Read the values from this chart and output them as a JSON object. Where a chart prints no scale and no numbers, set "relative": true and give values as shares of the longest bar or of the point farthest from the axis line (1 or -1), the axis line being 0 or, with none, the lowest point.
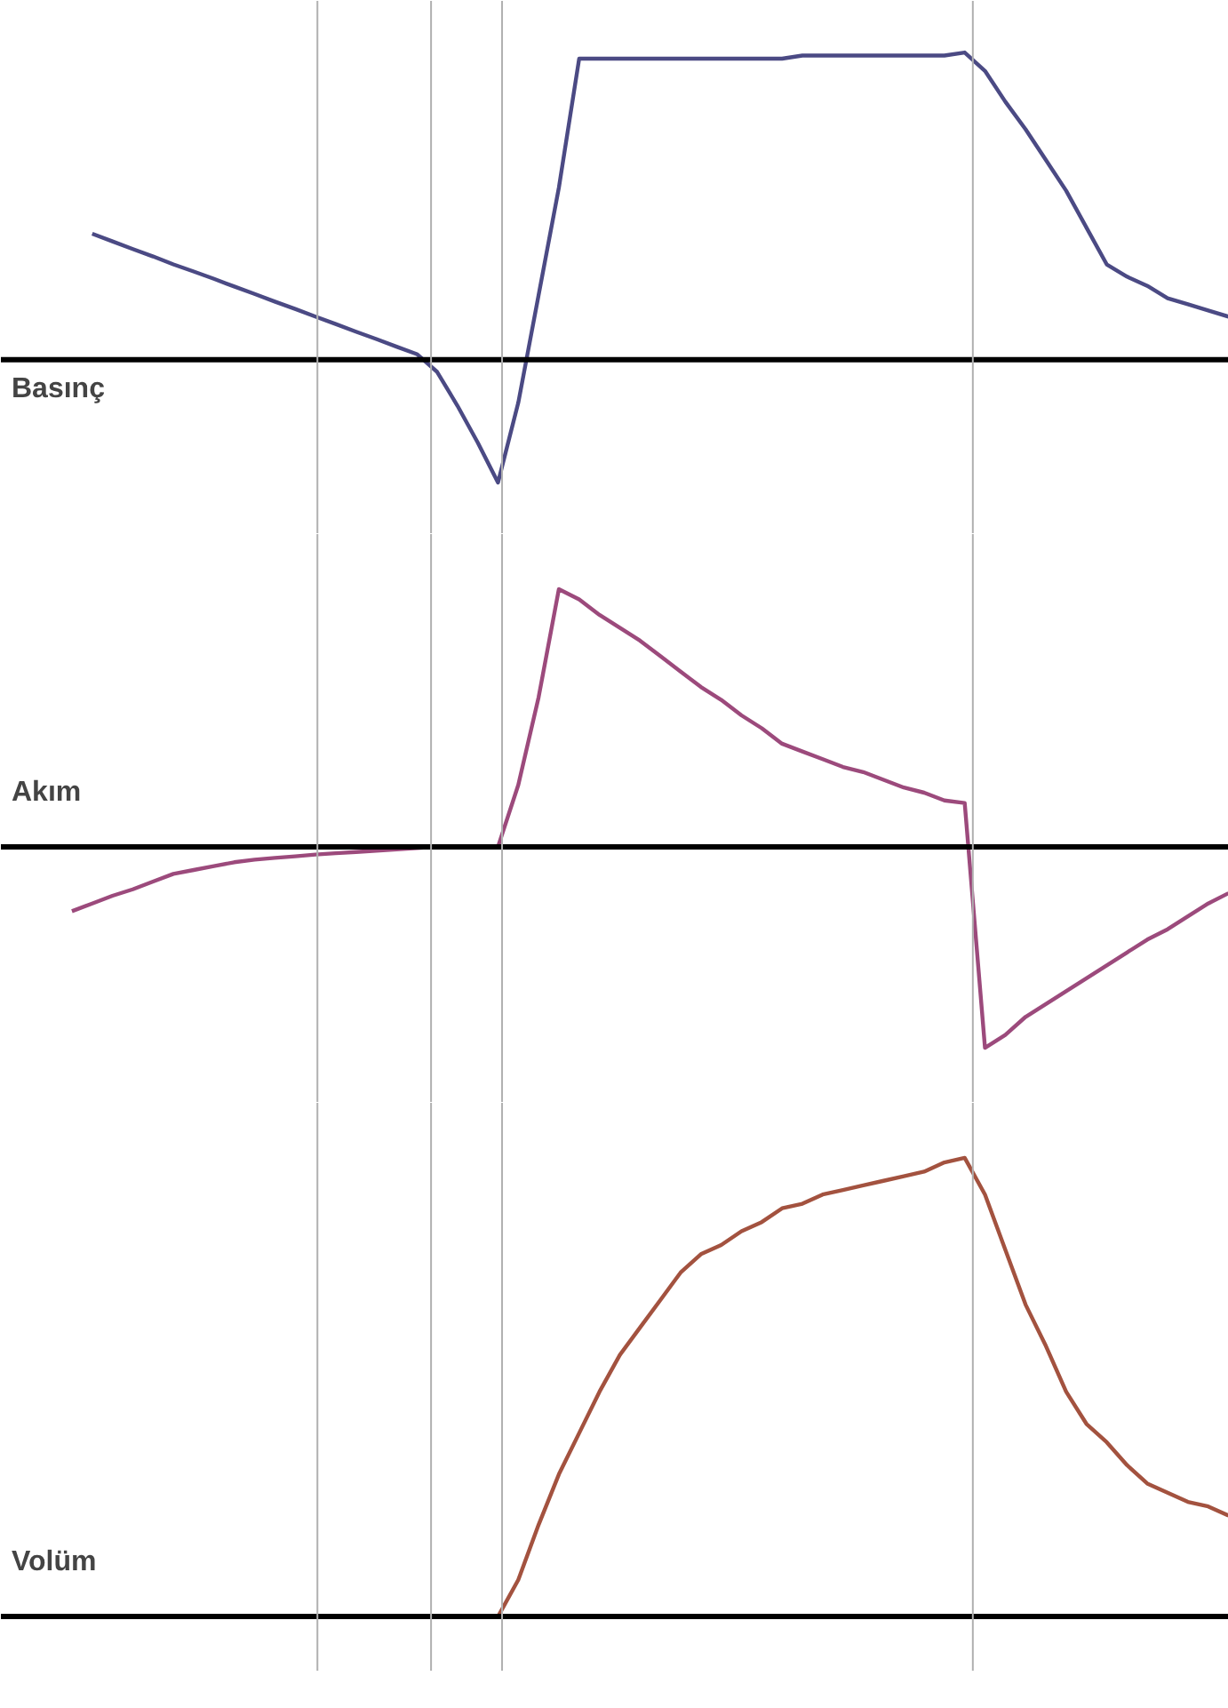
{
  "chart_data": [
    {
      "type": "line",
      "ylabel": "Basınç",
      "relative": true,
      "tick_labels": false,
      "grid": false,
      "categories": [
        null,
        null,
        null,
        null,
        null,
        null,
        null,
        null,
        null,
        null,
        null,
        null,
        null,
        null,
        null,
        null,
        null,
        null,
        null,
        null,
        null,
        null,
        null,
        null,
        null,
        null,
        null,
        null,
        null,
        null,
        null,
        null,
        null,
        null,
        null,
        null,
        null,
        null,
        null,
        null,
        null,
        null,
        null,
        null,
        null,
        null,
        null,
        null,
        null,
        null,
        null,
        null,
        null,
        null,
        null,
        null,
        null,
        null,
        null,
        null,
        null
      ],
      "series": [
        {
          "color": "#4b4a84",
          "values": [
            null,
            null,
            null,
            null,
            0.41,
            0.385,
            0.36,
            0.336,
            0.31,
            0.287,
            0.263,
            0.238,
            0.214,
            0.189,
            0.165,
            0.14,
            0.116,
            0.091,
            0.067,
            0.042,
            0.018,
            -0.04,
            -0.15,
            -0.27,
            -0.4,
            -0.14,
            0.21,
            0.56,
            0.98,
            0.98,
            0.98,
            0.98,
            0.98,
            0.98,
            0.98,
            0.98,
            0.98,
            0.98,
            0.98,
            0.99,
            0.99,
            0.99,
            0.99,
            0.99,
            0.99,
            0.99,
            0.99,
            1,
            0.94,
            0.84,
            0.75,
            0.65,
            0.55,
            0.43,
            0.31,
            0.27,
            0.24,
            0.2,
            0.18,
            0.16,
            0.14
          ]
        }
      ]
    },
    {
      "type": "line",
      "ylabel": "Akım",
      "relative": true,
      "tick_labels": false,
      "grid": false,
      "categories": [
        null,
        null,
        null,
        null,
        null,
        null,
        null,
        null,
        null,
        null,
        null,
        null,
        null,
        null,
        null,
        null,
        null,
        null,
        null,
        null,
        null,
        null,
        null,
        null,
        null,
        null,
        null,
        null,
        null,
        null,
        null,
        null,
        null,
        null,
        null,
        null,
        null,
        null,
        null,
        null,
        null,
        null,
        null,
        null,
        null,
        null,
        null,
        null,
        null,
        null,
        null,
        null,
        null,
        null,
        null,
        null,
        null,
        null,
        null,
        null,
        null
      ],
      "series": [
        {
          "color": "#9c4a7c",
          "values": [
            null,
            null,
            null,
            -0.25,
            -0.22,
            -0.19,
            -0.165,
            -0.135,
            -0.105,
            -0.09,
            -0.075,
            -0.06,
            -0.05,
            -0.043,
            -0.037,
            -0.03,
            -0.025,
            -0.02,
            -0.015,
            -0.01,
            -0.005,
            0,
            0,
            0,
            0,
            0.24,
            0.58,
            1,
            0.96,
            0.9,
            0.85,
            0.8,
            0.74,
            0.68,
            0.62,
            0.57,
            0.51,
            0.46,
            0.4,
            0.37,
            0.34,
            0.31,
            0.29,
            0.26,
            0.23,
            0.21,
            0.18,
            0.17,
            -0.78,
            -0.73,
            -0.66,
            -0.61,
            -0.56,
            -0.51,
            -0.46,
            -0.41,
            -0.36,
            -0.32,
            -0.27,
            -0.22,
            -0.18
          ]
        }
      ]
    },
    {
      "type": "line",
      "ylabel": "Volüm",
      "relative": true,
      "tick_labels": false,
      "grid": false,
      "categories": [
        null,
        null,
        null,
        null,
        null,
        null,
        null,
        null,
        null,
        null,
        null,
        null,
        null,
        null,
        null,
        null,
        null,
        null,
        null,
        null,
        null,
        null,
        null,
        null,
        null,
        null,
        null,
        null,
        null,
        null,
        null,
        null,
        null,
        null,
        null,
        null,
        null,
        null,
        null,
        null,
        null,
        null,
        null,
        null,
        null,
        null,
        null,
        null,
        null,
        null,
        null,
        null,
        null,
        null,
        null,
        null,
        null,
        null,
        null,
        null,
        null
      ],
      "series": [
        {
          "color": "#a3523f",
          "values": [
            null,
            null,
            null,
            null,
            null,
            null,
            null,
            null,
            null,
            null,
            null,
            null,
            null,
            null,
            null,
            null,
            null,
            null,
            null,
            null,
            null,
            null,
            null,
            null,
            0,
            0.08,
            0.2,
            0.31,
            0.4,
            0.49,
            0.57,
            0.63,
            0.69,
            0.75,
            0.79,
            0.81,
            0.84,
            0.86,
            0.89,
            0.9,
            0.92,
            0.93,
            0.94,
            0.95,
            0.96,
            0.97,
            0.99,
            1,
            0.92,
            0.8,
            0.68,
            0.59,
            0.49,
            0.42,
            0.38,
            0.33,
            0.29,
            0.27,
            0.25,
            0.24,
            0.22
          ]
        }
      ]
    }
  ]
}
